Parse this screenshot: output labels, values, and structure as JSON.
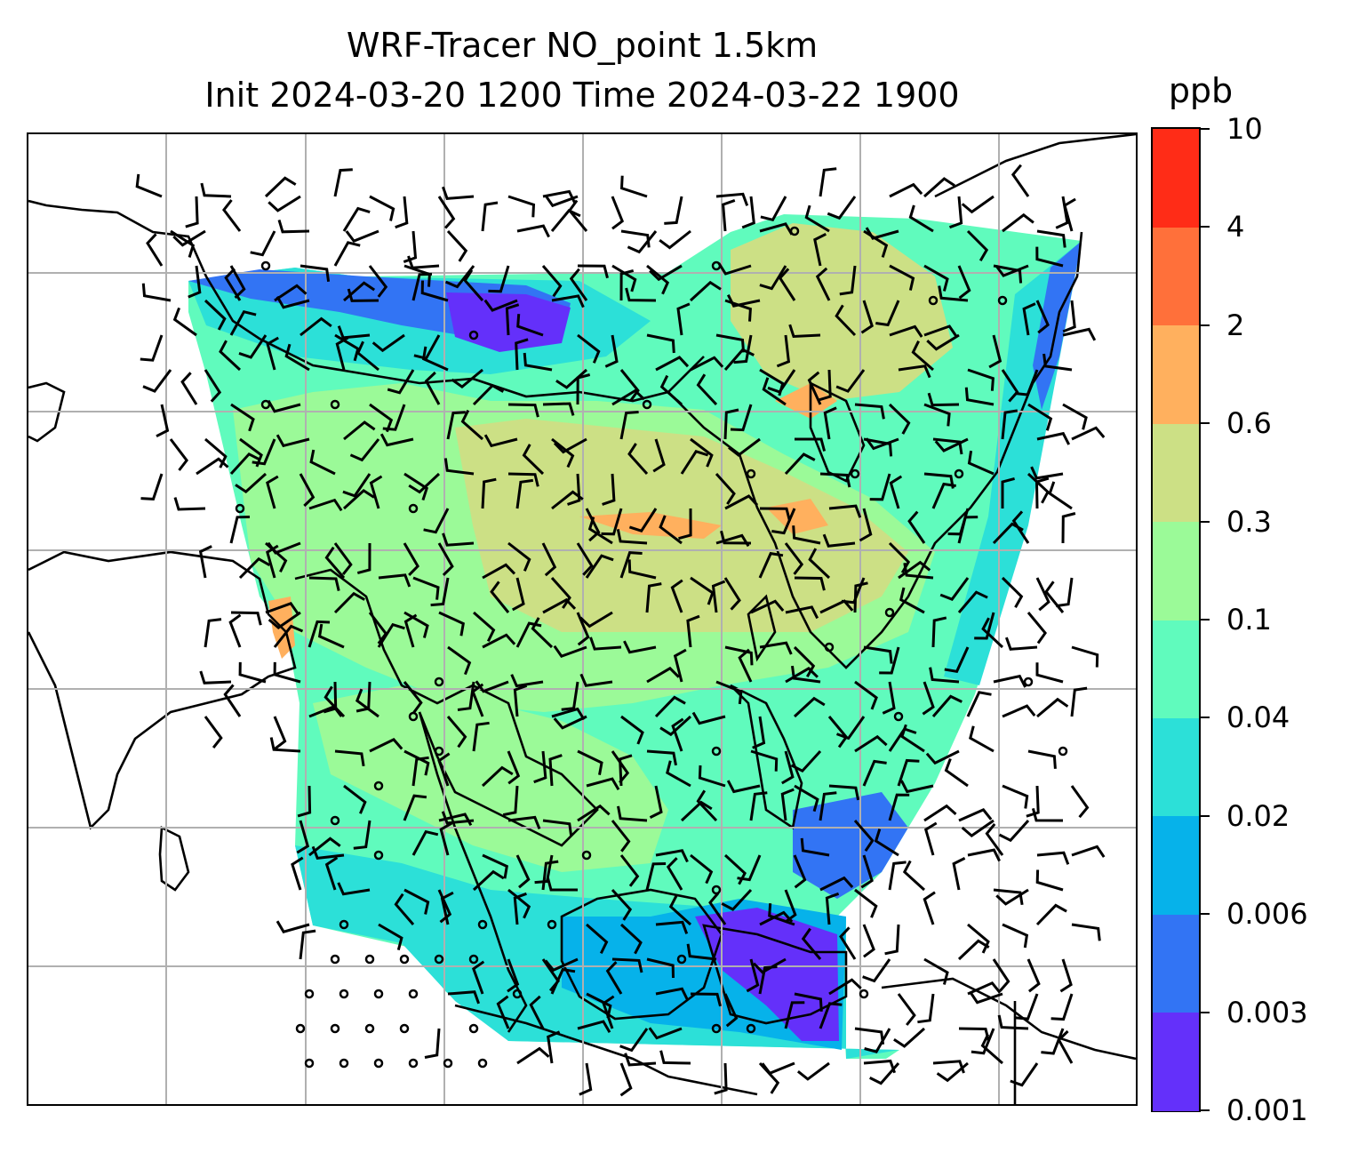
{
  "header": {
    "title_line1": "WRF-Tracer NO_point 1.5km",
    "title_line2": "Init 2024-03-20 1200 Time 2024-03-22 1900"
  },
  "colorbar": {
    "units": "ppb",
    "levels": [
      {
        "label": "0.001",
        "color": "#6430fa"
      },
      {
        "label": "0.003",
        "color": "#3274f4"
      },
      {
        "label": "0.006",
        "color": "#06b2ea"
      },
      {
        "label": "0.02",
        "color": "#2ce0d8"
      },
      {
        "label": "0.04",
        "color": "#60fbbd"
      },
      {
        "label": "0.1",
        "color": "#9bfa98"
      },
      {
        "label": "0.3",
        "color": "#cce085"
      },
      {
        "label": "0.6",
        "color": "#ffb05e"
      },
      {
        "label": "2",
        "color": "#ff703a"
      },
      {
        "label": "4",
        "color": "#ff2c17"
      },
      {
        "label": "10",
        "color": null
      }
    ]
  },
  "map": {
    "gridlines": "on",
    "gridline_color": "#b0b0b0",
    "coastline_color": "#000000",
    "wind_barb_color": "#000000"
  }
}
